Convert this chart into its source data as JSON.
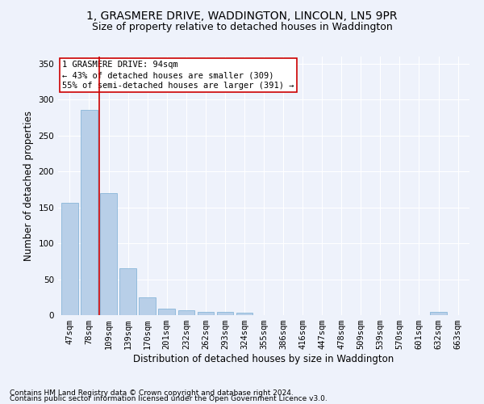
{
  "title": "1, GRASMERE DRIVE, WADDINGTON, LINCOLN, LN5 9PR",
  "subtitle": "Size of property relative to detached houses in Waddington",
  "xlabel": "Distribution of detached houses by size in Waddington",
  "ylabel": "Number of detached properties",
  "footer1": "Contains HM Land Registry data © Crown copyright and database right 2024.",
  "footer2": "Contains public sector information licensed under the Open Government Licence v3.0.",
  "categories": [
    "47sqm",
    "78sqm",
    "109sqm",
    "139sqm",
    "170sqm",
    "201sqm",
    "232sqm",
    "262sqm",
    "293sqm",
    "324sqm",
    "355sqm",
    "386sqm",
    "416sqm",
    "447sqm",
    "478sqm",
    "509sqm",
    "539sqm",
    "570sqm",
    "601sqm",
    "632sqm",
    "663sqm"
  ],
  "values": [
    156,
    286,
    170,
    65,
    25,
    9,
    7,
    5,
    4,
    3,
    0,
    0,
    0,
    0,
    0,
    0,
    0,
    0,
    0,
    4,
    0
  ],
  "bar_color": "#b8cfe8",
  "bar_edge_color": "#7aadd4",
  "vline_x": 1.5,
  "vline_color": "#cc0000",
  "annotation_line1": "1 GRASMERE DRIVE: 94sqm",
  "annotation_line2": "← 43% of detached houses are smaller (309)",
  "annotation_line3": "55% of semi-detached houses are larger (391) →",
  "ylim": [
    0,
    360
  ],
  "yticks": [
    0,
    50,
    100,
    150,
    200,
    250,
    300,
    350
  ],
  "background_color": "#eef2fb",
  "grid_color": "#ffffff",
  "title_fontsize": 10,
  "subtitle_fontsize": 9,
  "axis_label_fontsize": 8.5,
  "tick_fontsize": 7.5,
  "annotation_fontsize": 7.5,
  "footer_fontsize": 6.5
}
